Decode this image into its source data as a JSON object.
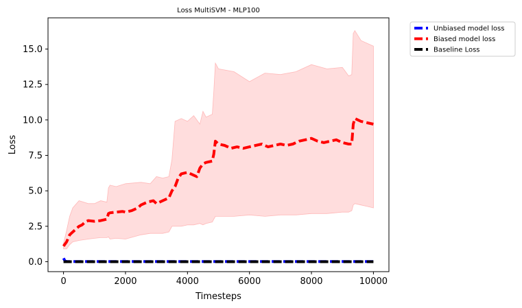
{
  "chart_data": {
    "type": "line",
    "title": "Loss MultiSVM - MLP100",
    "xlabel": "Timesteps",
    "ylabel": "Loss",
    "xlim": [
      -500,
      10500
    ],
    "ylim": [
      -0.7,
      17.2
    ],
    "xticks": [
      0,
      2000,
      4000,
      6000,
      8000,
      10000
    ],
    "xtick_labels": [
      "0",
      "2000",
      "4000",
      "6000",
      "8000",
      "10000"
    ],
    "yticks": [
      0.0,
      2.5,
      5.0,
      7.5,
      10.0,
      12.5,
      15.0
    ],
    "ytick_labels": [
      "0.0",
      "2.5",
      "5.0",
      "7.5",
      "10.0",
      "12.5",
      "15.0"
    ],
    "grid": false,
    "legend_position": "outside-top-right",
    "series": [
      {
        "name": "Unbiased model loss",
        "color": "#0000ff",
        "style": "dashed",
        "x": [
          0,
          50,
          100,
          200,
          500,
          1000,
          2000,
          3000,
          4000,
          5000,
          6000,
          7000,
          8000,
          9000,
          10000
        ],
        "y": [
          0.25,
          0.05,
          0.02,
          0.01,
          0.01,
          0.01,
          0.01,
          0.01,
          0.01,
          0.01,
          0.01,
          0.01,
          0.01,
          0.01,
          0.01
        ]
      },
      {
        "name": "Biased model loss",
        "color": "#ff0000",
        "style": "dashed",
        "x": [
          0,
          100,
          200,
          300,
          400,
          500,
          600,
          700,
          800,
          1000,
          1200,
          1400,
          1450,
          1500,
          1700,
          1900,
          2000,
          2200,
          2400,
          2500,
          2700,
          2900,
          3000,
          3200,
          3400,
          3500,
          3600,
          3700,
          3800,
          4000,
          4200,
          4300,
          4400,
          4500,
          4600,
          4800,
          4850,
          4900,
          5000,
          5200,
          5400,
          5600,
          5800,
          6000,
          6200,
          6400,
          6600,
          6800,
          7000,
          7200,
          7400,
          7600,
          7800,
          8000,
          8200,
          8400,
          8600,
          8800,
          9000,
          9200,
          9300,
          9350,
          9400,
          9600,
          9800,
          10000
        ],
        "y": [
          1.1,
          1.4,
          1.9,
          2.1,
          2.3,
          2.5,
          2.6,
          2.8,
          2.9,
          2.85,
          2.9,
          3.0,
          3.4,
          3.45,
          3.5,
          3.55,
          3.5,
          3.6,
          3.8,
          4.0,
          4.2,
          4.3,
          4.1,
          4.3,
          4.5,
          5.0,
          5.3,
          5.9,
          6.2,
          6.3,
          6.1,
          6.0,
          6.6,
          6.9,
          7.0,
          7.1,
          7.6,
          8.5,
          8.3,
          8.2,
          8.0,
          8.1,
          8.0,
          8.1,
          8.2,
          8.3,
          8.1,
          8.2,
          8.3,
          8.2,
          8.3,
          8.5,
          8.6,
          8.7,
          8.5,
          8.4,
          8.5,
          8.6,
          8.4,
          8.3,
          8.3,
          9.7,
          10.1,
          9.9,
          9.8,
          9.7
        ]
      },
      {
        "name": "Baseline Loss",
        "color": "#000000",
        "style": "dashed",
        "x": [
          0,
          10000
        ],
        "y": [
          0.0,
          0.0
        ]
      }
    ],
    "band": {
      "series": "Biased model loss",
      "color": "#ffdddd",
      "x": [
        0,
        100,
        200,
        300,
        500,
        800,
        1000,
        1200,
        1400,
        1450,
        1500,
        1700,
        2000,
        2500,
        2800,
        3000,
        3200,
        3400,
        3500,
        3600,
        3800,
        4000,
        4200,
        4400,
        4500,
        4600,
        4800,
        4850,
        4900,
        5000,
        5500,
        6000,
        6500,
        7000,
        7500,
        8000,
        8500,
        9000,
        9200,
        9300,
        9350,
        9400,
        9600,
        9800,
        10000
      ],
      "upper": [
        1.3,
        2.2,
        3.2,
        3.8,
        4.3,
        4.1,
        4.1,
        4.3,
        4.2,
        5.2,
        5.4,
        5.3,
        5.5,
        5.6,
        5.5,
        6.0,
        5.9,
        6.0,
        7.2,
        9.9,
        10.1,
        9.9,
        10.3,
        9.7,
        10.6,
        10.2,
        10.4,
        12.0,
        14.0,
        13.6,
        13.4,
        12.7,
        13.3,
        13.2,
        13.4,
        13.9,
        13.6,
        13.7,
        13.1,
        13.2,
        16.1,
        16.3,
        15.6,
        15.4,
        15.2
      ],
      "lower": [
        0.9,
        0.9,
        1.2,
        1.4,
        1.5,
        1.6,
        1.65,
        1.7,
        1.7,
        1.75,
        1.6,
        1.65,
        1.6,
        1.9,
        2.0,
        2.0,
        2.0,
        2.1,
        2.5,
        2.5,
        2.5,
        2.6,
        2.6,
        2.7,
        2.6,
        2.7,
        2.8,
        3.0,
        3.2,
        3.2,
        3.2,
        3.3,
        3.2,
        3.3,
        3.3,
        3.4,
        3.4,
        3.5,
        3.5,
        3.6,
        4.0,
        4.1,
        4.0,
        3.9,
        3.8
      ]
    }
  }
}
